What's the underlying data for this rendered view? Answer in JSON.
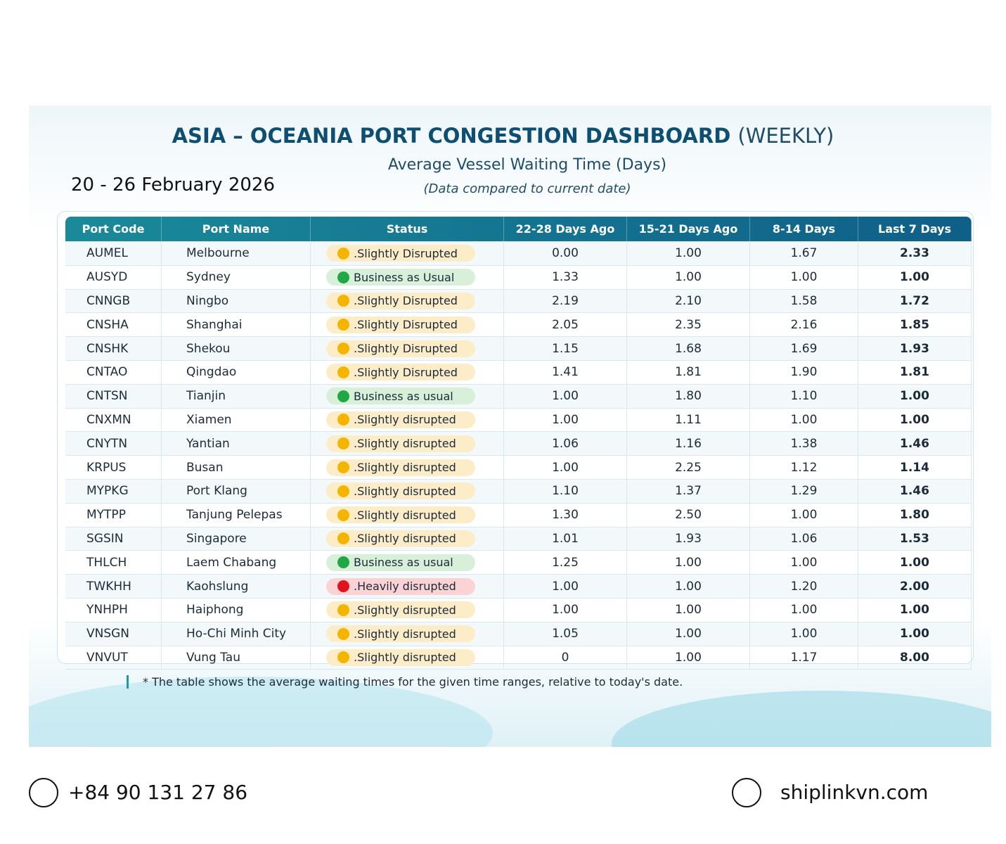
{
  "header": {
    "title": "ASIA – OCEANIA PORT CONGESTION DASHBOARD",
    "title_suffix": "(WEEKLY)",
    "subtitle": "Average Vessel Waiting Time (Days)",
    "note": "(Data compared to current date)",
    "date": "20 - 26 February 2026"
  },
  "table": {
    "columns": [
      "Port Code",
      "Port Name",
      "Status",
      "22-28 Days Ago",
      "15-21 Days Ago",
      "8-14 Days",
      "Last 7 Days"
    ],
    "rows": [
      [
        "AUMEL",
        "Melbourne",
        {
          "text": ".Slightly Disrupted",
          "dot": "#f5b400",
          "bg": "#fdecc8"
        },
        "0.00",
        "1.00",
        "1.67",
        "2.33"
      ],
      [
        "AUSYD",
        "Sydney",
        {
          "text": "Business as Usual",
          "dot": "#1fa843",
          "bg": "#d8f0da"
        },
        "1.33",
        "1.00",
        "1.00",
        "1.00"
      ],
      [
        "CNNGB",
        "Ningbo",
        {
          "text": ".Slightly Disrupted",
          "dot": "#f5b400",
          "bg": "#fdecc8"
        },
        "2.19",
        "2.10",
        "1.58",
        "1.72"
      ],
      [
        "CNSHA",
        "Shanghai",
        {
          "text": ".Slightly Disrupted",
          "dot": "#f5b400",
          "bg": "#fdecc8"
        },
        "2.05",
        "2.35",
        "2.16",
        "1.85"
      ],
      [
        "CNSHK",
        "Shekou",
        {
          "text": ".Slightly Disrupted",
          "dot": "#f5b400",
          "bg": "#fdecc8"
        },
        "1.15",
        "1.68",
        "1.69",
        "1.93"
      ],
      [
        "CNTAO",
        "Qingdao",
        {
          "text": ".Slightly Disrupted",
          "dot": "#f5b400",
          "bg": "#fdecc8"
        },
        "1.41",
        "1.81",
        "1.90",
        "1.81"
      ],
      [
        "CNTSN",
        "Tianjin",
        {
          "text": "Business as usual",
          "dot": "#1fa843",
          "bg": "#d8f0da"
        },
        "1.00",
        "1.80",
        "1.10",
        "1.00"
      ],
      [
        "CNXMN",
        "Xiamen",
        {
          "text": ".Slightly disrupted",
          "dot": "#f5b400",
          "bg": "#fdecc8"
        },
        "1.00",
        "1.11",
        "1.00",
        "1.00"
      ],
      [
        "CNYTN",
        "Yantian",
        {
          "text": ".Slightly disrupted",
          "dot": "#f5b400",
          "bg": "#fdecc8"
        },
        "1.06",
        "1.16",
        "1.38",
        "1.46"
      ],
      [
        "KRPUS",
        "Busan",
        {
          "text": ".Slightly disrupted",
          "dot": "#f5b400",
          "bg": "#fdecc8"
        },
        "1.00",
        "2.25",
        "1.12",
        "1.14"
      ],
      [
        "MYPKG",
        "Port Klang",
        {
          "text": ".Slightly disrupted",
          "dot": "#f5b400",
          "bg": "#fdecc8"
        },
        "1.10",
        "1.37",
        "1.29",
        "1.46"
      ],
      [
        "MYTPP",
        "Tanjung Pelepas",
        {
          "text": ".Slightly disrupted",
          "dot": "#f5b400",
          "bg": "#fdecc8"
        },
        "1.30",
        "2.50",
        "1.00",
        "1.80"
      ],
      [
        "SGSIN",
        "Singapore",
        {
          "text": ".Slightly disrupted",
          "dot": "#f5b400",
          "bg": "#fdecc8"
        },
        "1.01",
        "1.93",
        "1.06",
        "1.53"
      ],
      [
        "THLCH",
        "Laem Chabang",
        {
          "text": "Business as usual",
          "dot": "#1fa843",
          "bg": "#d8f0da"
        },
        "1.25",
        "1.00",
        "1.00",
        "1.00"
      ],
      [
        "TWKHH",
        "Kaohslung",
        {
          "text": ".Heavily disrupted",
          "dot": "#e0141e",
          "bg": "#fbd3d5"
        },
        "1.00",
        "1.00",
        "1.20",
        "2.00"
      ],
      [
        "YNHPH",
        "Haiphong",
        {
          "text": ".Slightly disrupted",
          "dot": "#f5b400",
          "bg": "#fdecc8"
        },
        "1.00",
        "1.00",
        "1.00",
        "1.00"
      ],
      [
        "VNSGN",
        "Ho-Chi Minh City",
        {
          "text": ".Slightly disrupted",
          "dot": "#f5b400",
          "bg": "#fdecc8"
        },
        "1.05",
        "1.00",
        "1.00",
        "1.00"
      ],
      [
        "VNVUT",
        "Vung Tau",
        {
          "text": ".Slightly disrupted",
          "dot": "#f5b400",
          "bg": "#fdecc8"
        },
        "0",
        "1.00",
        "1.17",
        "8.00"
      ]
    ]
  },
  "footnote": "* The table shows the average waiting times for the given time ranges, relative to today's date.",
  "contact": {
    "phone": "+84 90 131 27 86",
    "website": "shiplinkvn.com"
  }
}
